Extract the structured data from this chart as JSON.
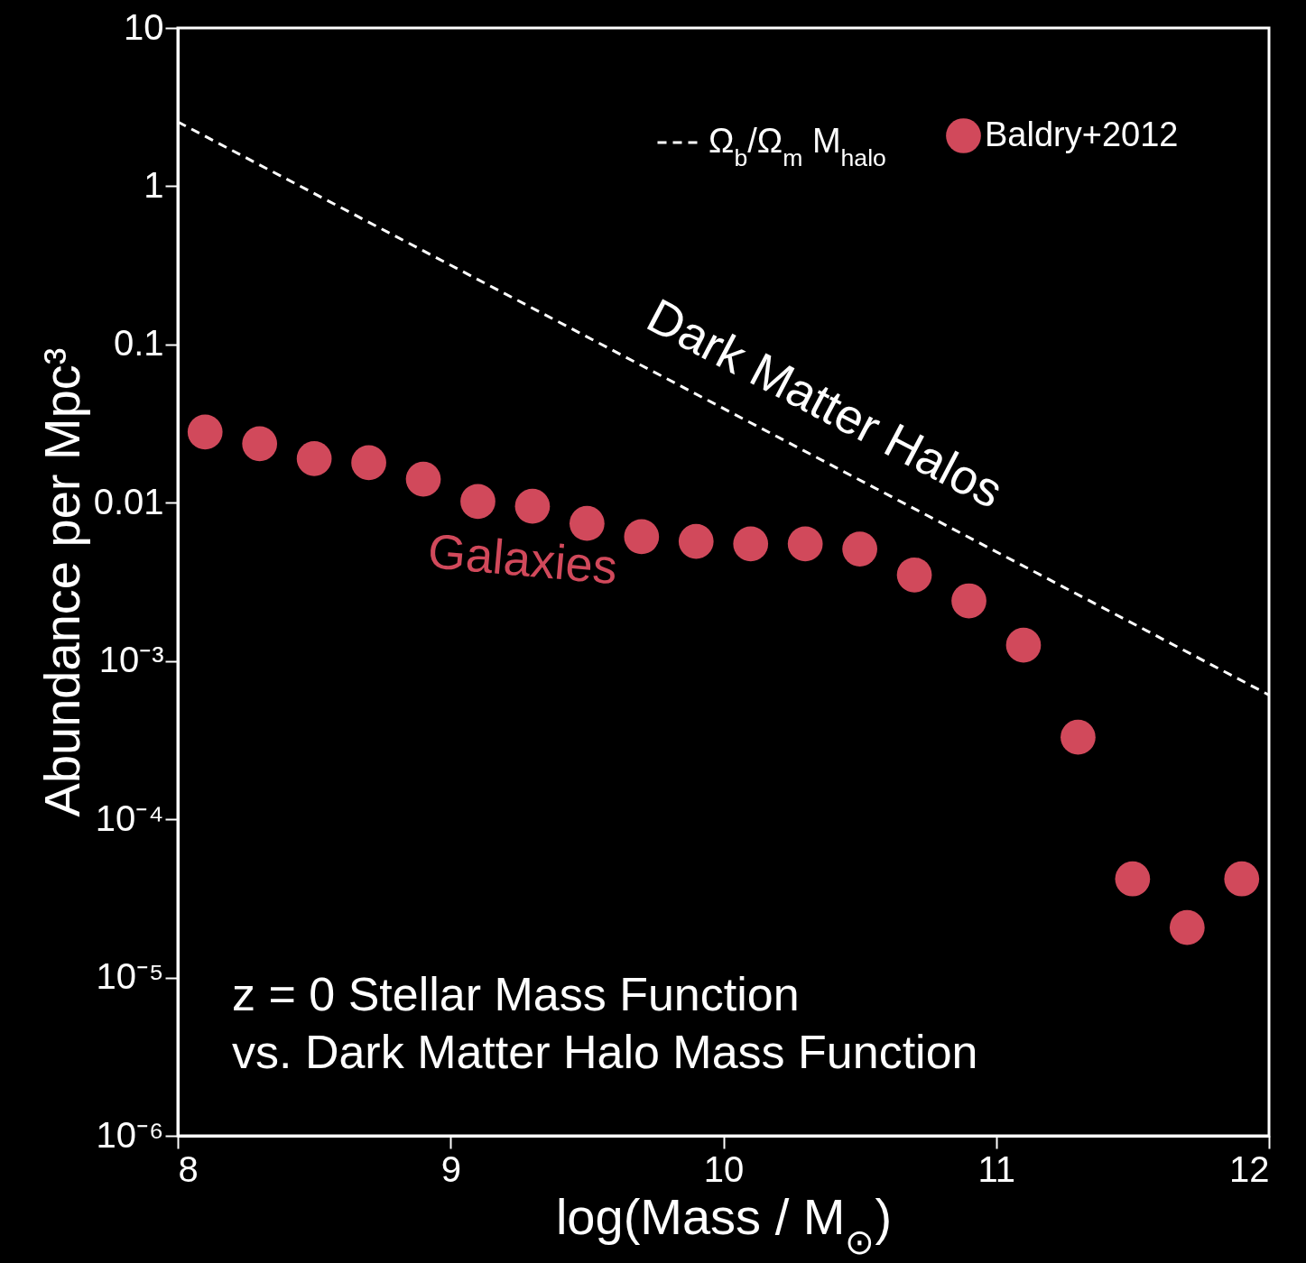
{
  "chart_data": {
    "type": "scatter",
    "xlabel": "log(Mass / M$_{⊙}$)",
    "ylabel": "Abundance per Mpc³",
    "log": "y",
    "grid": false,
    "legend": "top right",
    "xlim": [
      8,
      12
    ],
    "xticks": [
      8,
      9,
      10,
      11,
      12
    ],
    "ylim": [
      1e-06,
      10
    ],
    "yticks": [
      {
        "value": 1e-06,
        "label": "10⁻⁶"
      },
      {
        "value": 1e-05,
        "label": "10⁻⁵"
      },
      {
        "value": 0.0001,
        "label": "10⁻⁴"
      },
      {
        "value": 0.001,
        "label": "10⁻³"
      },
      0.01,
      0.1,
      1,
      10
    ],
    "series": [
      {
        "name": "Ω$_{b}$/Ω$_{m}$ M$_{halo}$",
        "type": "line",
        "line_style": "dashed",
        "color": "#ffffff",
        "x": [
          8,
          12
        ],
        "values": [
          2.55,
          0.00061
        ]
      },
      {
        "name": "Baldry+2012",
        "marker": "circle",
        "color": "#d1495b",
        "x": [
          8.1,
          8.3,
          8.5,
          8.7,
          8.9,
          9.1,
          9.3,
          9.5,
          9.7,
          9.9,
          10.1,
          10.3,
          10.5,
          10.7,
          10.9,
          11.1,
          11.3,
          11.5,
          11.7,
          11.9
        ],
        "values": [
          0.028,
          0.0236,
          0.019,
          0.0179,
          0.0141,
          0.0102,
          0.0095,
          0.0074,
          0.0061,
          0.0057,
          0.0055,
          0.0055,
          0.0051,
          0.0035,
          0.0024,
          0.00126,
          0.00033,
          4.2e-05,
          2.07e-05,
          4.2e-05
        ]
      }
    ],
    "annotations": [
      {
        "text": "Dark Matter Halos",
        "x": 10.2,
        "y": 0.026
      },
      {
        "text": "Galaxies",
        "x": 9.3,
        "y": 0.0095
      },
      "z = 0 Stellar Mass Function",
      "vs. Dark Matter Halo Mass Function"
    ]
  }
}
